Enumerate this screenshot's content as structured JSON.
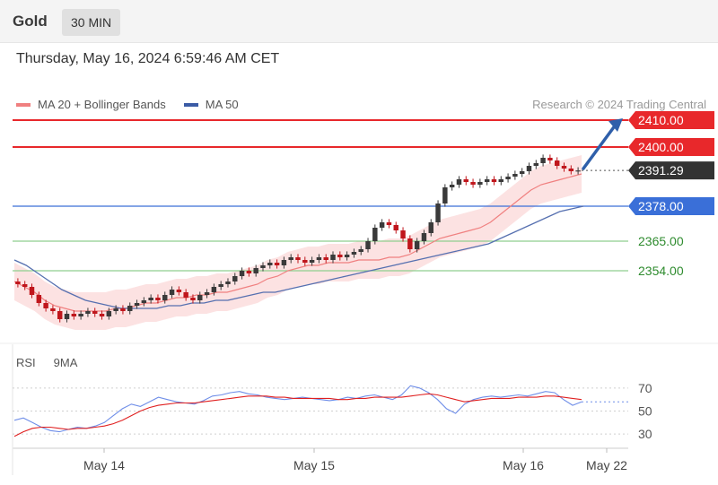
{
  "header": {
    "instrument": "Gold",
    "interval": "30 MIN"
  },
  "timestamp": "Thursday, May 16, 2024 6:59:46 AM CET",
  "legend": {
    "items": [
      {
        "label": "MA 20 + Bollinger Bands",
        "color": "#f08080"
      },
      {
        "label": "MA 50",
        "color": "#3b5ba5"
      }
    ],
    "credit": "Research © 2024 Trading Central"
  },
  "rsi_legend": {
    "items": [
      {
        "label": "RSI",
        "color": "#6f8ee8"
      },
      {
        "label": "9MA",
        "color": "#e02020"
      }
    ]
  },
  "colors": {
    "resistance": "#e8282b",
    "pivot": "#3a6fd8",
    "support": "#8fcf8f",
    "support_text": "#2e8b2e",
    "last_price_tag": "#333333",
    "arrow": "#2f5faa",
    "up_candle": "#3a3a3a",
    "down_candle": "#c0161c"
  },
  "chart_data": [
    {
      "type": "candlestick",
      "title": "Gold",
      "interval": "30 MIN",
      "x_ticks": [
        "May 14",
        "May 15",
        "May 16",
        "May 22"
      ],
      "ylim": [
        2328,
        2418
      ],
      "grid": false,
      "legend_position": "top-left",
      "levels": [
        {
          "kind": "resistance",
          "value": 2410.0,
          "label": "2410.00"
        },
        {
          "kind": "resistance",
          "value": 2400.0,
          "label": "2400.00"
        },
        {
          "kind": "last",
          "value": 2391.29,
          "label": "2391.29"
        },
        {
          "kind": "pivot",
          "value": 2378.0,
          "label": "2378.00"
        },
        {
          "kind": "support",
          "value": 2365.0,
          "label": "2365.00"
        },
        {
          "kind": "support",
          "value": 2354.0,
          "label": "2354.00"
        }
      ],
      "close_series": [
        2349,
        2348,
        2345,
        2342,
        2340,
        2339,
        2336,
        2338,
        2337,
        2338,
        2339,
        2338,
        2337,
        2339,
        2340,
        2339,
        2341,
        2342,
        2343,
        2344,
        2343,
        2345,
        2347,
        2346,
        2344,
        2343,
        2345,
        2346,
        2348,
        2349,
        2350,
        2352,
        2354,
        2353,
        2355,
        2356,
        2357,
        2356,
        2358,
        2359,
        2358,
        2357,
        2358,
        2359,
        2358,
        2360,
        2359,
        2360,
        2361,
        2362,
        2365,
        2370,
        2372,
        2371,
        2369,
        2366,
        2362,
        2365,
        2368,
        2372,
        2379,
        2385,
        2386,
        2388,
        2387,
        2386,
        2387,
        2388,
        2387,
        2388,
        2389,
        2390,
        2391,
        2393,
        2394,
        2396,
        2395,
        2393,
        2392,
        2391,
        2391.29
      ],
      "ma50_series": [
        2358,
        2356,
        2353,
        2350,
        2347,
        2345,
        2343,
        2342,
        2341,
        2340,
        2340,
        2340,
        2340,
        2341,
        2341,
        2342,
        2342,
        2343,
        2343,
        2344,
        2345,
        2346,
        2346,
        2347,
        2348,
        2349,
        2350,
        2351,
        2352,
        2353,
        2354,
        2355,
        2356,
        2357,
        2358,
        2359,
        2360,
        2361,
        2362,
        2363,
        2364,
        2366,
        2368,
        2370,
        2372,
        2374,
        2376,
        2377,
        2378
      ],
      "ma20_series": [
        2350,
        2348,
        2346,
        2343,
        2341,
        2340,
        2339,
        2339,
        2339,
        2339,
        2340,
        2340,
        2341,
        2342,
        2342,
        2343,
        2344,
        2344,
        2345,
        2345,
        2346,
        2346,
        2347,
        2348,
        2349,
        2351,
        2352,
        2354,
        2355,
        2356,
        2356,
        2357,
        2357,
        2357,
        2358,
        2358,
        2358,
        2359,
        2359,
        2360,
        2362,
        2364,
        2366,
        2367,
        2368,
        2369,
        2370,
        2372,
        2375,
        2378,
        2381,
        2384,
        2386,
        2387,
        2388,
        2389,
        2390
      ],
      "forecast_arrow": {
        "from": 2392,
        "to": 2410
      }
    },
    {
      "type": "line",
      "title": "",
      "ylim": [
        20,
        80
      ],
      "y_ticks": [
        30,
        50,
        70
      ],
      "legend_position": "top-left",
      "series": [
        {
          "name": "RSI",
          "values": [
            42,
            44,
            40,
            36,
            33,
            32,
            34,
            36,
            35,
            37,
            40,
            46,
            52,
            56,
            54,
            58,
            62,
            60,
            58,
            57,
            56,
            59,
            63,
            64,
            66,
            67,
            65,
            64,
            62,
            61,
            60,
            61,
            62,
            61,
            60,
            59,
            60,
            62,
            61,
            63,
            64,
            62,
            60,
            64,
            72,
            70,
            66,
            60,
            52,
            48,
            56,
            60,
            62,
            63,
            62,
            63,
            64,
            63,
            65,
            67,
            66,
            60,
            55,
            58
          ]
        },
        {
          "name": "9MA",
          "values": [
            28,
            32,
            35,
            36,
            36,
            35,
            34,
            35,
            35,
            36,
            37,
            39,
            42,
            46,
            50,
            53,
            55,
            56,
            57,
            57,
            57,
            58,
            59,
            60,
            61,
            62,
            63,
            63,
            63,
            62,
            62,
            61,
            61,
            61,
            61,
            61,
            60,
            60,
            61,
            61,
            62,
            62,
            62,
            62,
            63,
            64,
            65,
            64,
            62,
            60,
            58,
            59,
            60,
            61,
            61,
            61,
            62,
            62,
            62,
            63,
            63,
            62,
            61,
            60
          ]
        }
      ]
    }
  ]
}
